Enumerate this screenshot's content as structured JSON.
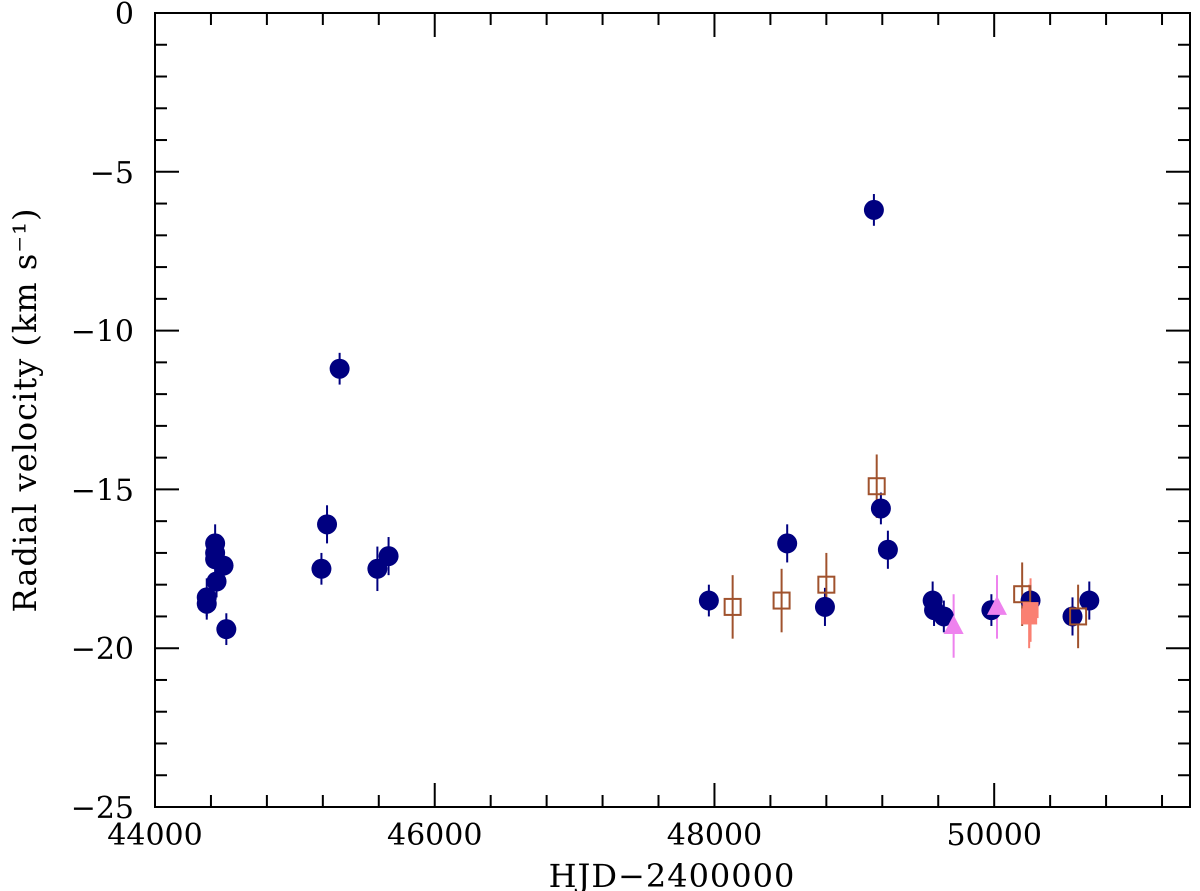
{
  "chart_data": {
    "type": "scatter",
    "xlabel": "HJD−2400000",
    "ylabel": "Radial velocity (km s⁻¹)",
    "xlim": [
      44000,
      51400
    ],
    "ylim": [
      -25,
      0
    ],
    "x_ticks": [
      44000,
      46000,
      48000,
      50000
    ],
    "x_tick_labels": [
      "44000",
      "46000",
      "48000",
      "50000"
    ],
    "y_ticks": [
      0,
      -5,
      -10,
      -15,
      -20,
      -25
    ],
    "y_tick_labels": [
      "0",
      "−5",
      "−10",
      "−15",
      "−20",
      "−25"
    ],
    "x_minor_step": 400,
    "y_minor_step": 1,
    "grid": false,
    "legend": "none",
    "series": [
      {
        "marker": "filled-circle",
        "color": "#000080",
        "points": [
          {
            "x": 44370,
            "y": -18.4,
            "err": 0.6
          },
          {
            "x": 44370,
            "y": -18.6,
            "err": 0.5
          },
          {
            "x": 44430,
            "y": -16.7,
            "err": 0.6
          },
          {
            "x": 44430,
            "y": -17.0,
            "err": 0.5
          },
          {
            "x": 44430,
            "y": -17.2,
            "err": 0.5
          },
          {
            "x": 44440,
            "y": -17.9,
            "err": 0.5
          },
          {
            "x": 44490,
            "y": -17.4,
            "err": 0.5
          },
          {
            "x": 44510,
            "y": -19.4,
            "err": 0.5
          },
          {
            "x": 45190,
            "y": -17.5,
            "err": 0.5
          },
          {
            "x": 45230,
            "y": -16.1,
            "err": 0.6
          },
          {
            "x": 45320,
            "y": -11.2,
            "err": 0.5
          },
          {
            "x": 45590,
            "y": -17.5,
            "err": 0.7
          },
          {
            "x": 45670,
            "y": -17.1,
            "err": 0.6
          },
          {
            "x": 47960,
            "y": -18.5,
            "err": 0.5
          },
          {
            "x": 48520,
            "y": -16.7,
            "err": 0.6
          },
          {
            "x": 48790,
            "y": -18.7,
            "err": 0.6
          },
          {
            "x": 49140,
            "y": -6.2,
            "err": 0.5
          },
          {
            "x": 49190,
            "y": -15.6,
            "err": 0.5
          },
          {
            "x": 49240,
            "y": -16.9,
            "err": 0.6
          },
          {
            "x": 49560,
            "y": -18.5,
            "err": 0.6
          },
          {
            "x": 49570,
            "y": -18.8,
            "err": 0.5
          },
          {
            "x": 49640,
            "y": -19.0,
            "err": 0.5
          },
          {
            "x": 49980,
            "y": -18.8,
            "err": 0.5
          },
          {
            "x": 50260,
            "y": -18.5,
            "err": 0.5
          },
          {
            "x": 50560,
            "y": -19.0,
            "err": 0.6
          },
          {
            "x": 50680,
            "y": -18.5,
            "err": 0.6
          }
        ]
      },
      {
        "marker": "open-square",
        "color": "#a0522d",
        "points": [
          {
            "x": 48130,
            "y": -18.7,
            "err": 1.0
          },
          {
            "x": 48480,
            "y": -18.5,
            "err": 1.0
          },
          {
            "x": 48800,
            "y": -18.0,
            "err": 1.0
          },
          {
            "x": 49160,
            "y": -14.9,
            "err": 1.0
          },
          {
            "x": 50200,
            "y": -18.3,
            "err": 1.0
          },
          {
            "x": 50600,
            "y": -19.0,
            "err": 1.0
          }
        ]
      },
      {
        "marker": "filled-triangle",
        "color": "#ee82ee",
        "points": [
          {
            "x": 49710,
            "y": -19.3,
            "err": 1.0
          },
          {
            "x": 50020,
            "y": -18.7,
            "err": 1.0
          }
        ]
      },
      {
        "marker": "filled-square",
        "color": "#fa8072",
        "points": [
          {
            "x": 50250,
            "y": -19.0,
            "err": 1.0
          },
          {
            "x": 50260,
            "y": -18.8,
            "err": 1.0
          }
        ]
      }
    ]
  }
}
